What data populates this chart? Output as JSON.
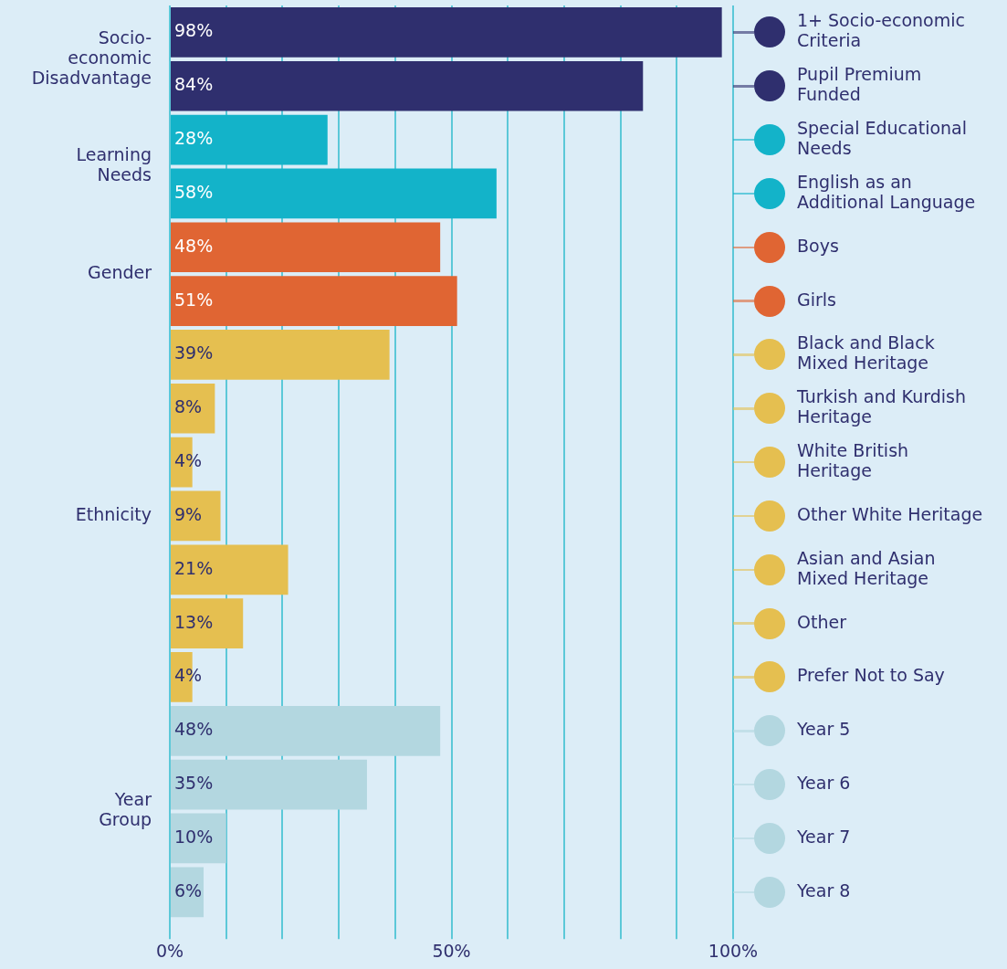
{
  "chart_data": {
    "type": "bar",
    "orientation": "horizontal",
    "categories": [
      "1+ Socio-economic Criteria",
      "Pupil Premium Funded",
      "Special Educational Needs",
      "English as an Additional Language",
      "Boys",
      "Girls",
      "Black and Black Mixed Heritage",
      "Turkish and Kurdish Heritage",
      "White British Heritage",
      "Other White Heritage",
      "Asian and Asian Mixed Heritage",
      "Other",
      "Prefer Not to Say",
      "Year 5",
      "Year 6",
      "Year 7",
      "Year 8"
    ],
    "series": [
      {
        "name": "Socio-economic Disadvantage",
        "color": "#2f2f6e",
        "values": [
          98,
          84,
          null,
          null,
          null,
          null,
          null,
          null,
          null,
          null,
          null,
          null,
          null,
          null,
          null,
          null,
          null
        ],
        "value_labels": [
          "98%",
          "84%",
          null,
          null,
          null,
          null,
          null,
          null,
          null,
          null,
          null,
          null,
          null,
          null,
          null,
          null,
          null
        ]
      },
      {
        "name": "Learning Needs",
        "color": "#13b3c9",
        "values": [
          null,
          null,
          28,
          58,
          null,
          null,
          null,
          null,
          null,
          null,
          null,
          null,
          null,
          null,
          null,
          null,
          null
        ],
        "value_labels": [
          null,
          null,
          "28%",
          "58%",
          null,
          null,
          null,
          null,
          null,
          null,
          null,
          null,
          null,
          null,
          null,
          null,
          null
        ]
      },
      {
        "name": "Gender",
        "color": "#e06533",
        "values": [
          null,
          null,
          null,
          null,
          48,
          51,
          null,
          null,
          null,
          null,
          null,
          null,
          null,
          null,
          null,
          null,
          null
        ],
        "value_labels": [
          null,
          null,
          null,
          null,
          "48%",
          "51%",
          null,
          null,
          null,
          null,
          null,
          null,
          null,
          null,
          null,
          null,
          null
        ]
      },
      {
        "name": "Ethnicity",
        "color": "#e5bf50",
        "values": [
          null,
          null,
          null,
          null,
          null,
          null,
          39,
          8,
          4,
          9,
          21,
          13,
          4,
          null,
          null,
          null,
          null
        ],
        "value_labels": [
          null,
          null,
          null,
          null,
          null,
          null,
          "39%",
          "8%",
          "4%",
          "9%",
          "21%",
          "13%",
          "4%",
          null,
          null,
          null,
          null
        ]
      },
      {
        "name": "Year Group",
        "color": "#b3d7e0",
        "values": [
          null,
          null,
          null,
          null,
          null,
          null,
          null,
          null,
          null,
          null,
          null,
          null,
          null,
          48,
          35,
          10,
          6
        ],
        "value_labels": [
          null,
          null,
          null,
          null,
          null,
          null,
          null,
          null,
          null,
          null,
          null,
          null,
          null,
          "48%",
          "35%",
          "10%",
          "6%"
        ]
      }
    ],
    "xlim": [
      0,
      100
    ],
    "xticks": [
      {
        "value": 0,
        "label": "0%"
      },
      {
        "value": 10,
        "label": null
      },
      {
        "value": 20,
        "label": null
      },
      {
        "value": 30,
        "label": null
      },
      {
        "value": 40,
        "label": null
      },
      {
        "value": 50,
        "label": "50%"
      },
      {
        "value": 60,
        "label": null
      },
      {
        "value": 70,
        "label": null
      },
      {
        "value": 80,
        "label": null
      },
      {
        "value": 90,
        "label": null
      },
      {
        "value": 100,
        "label": "100%"
      }
    ],
    "grid": "x",
    "legend": false
  }
}
